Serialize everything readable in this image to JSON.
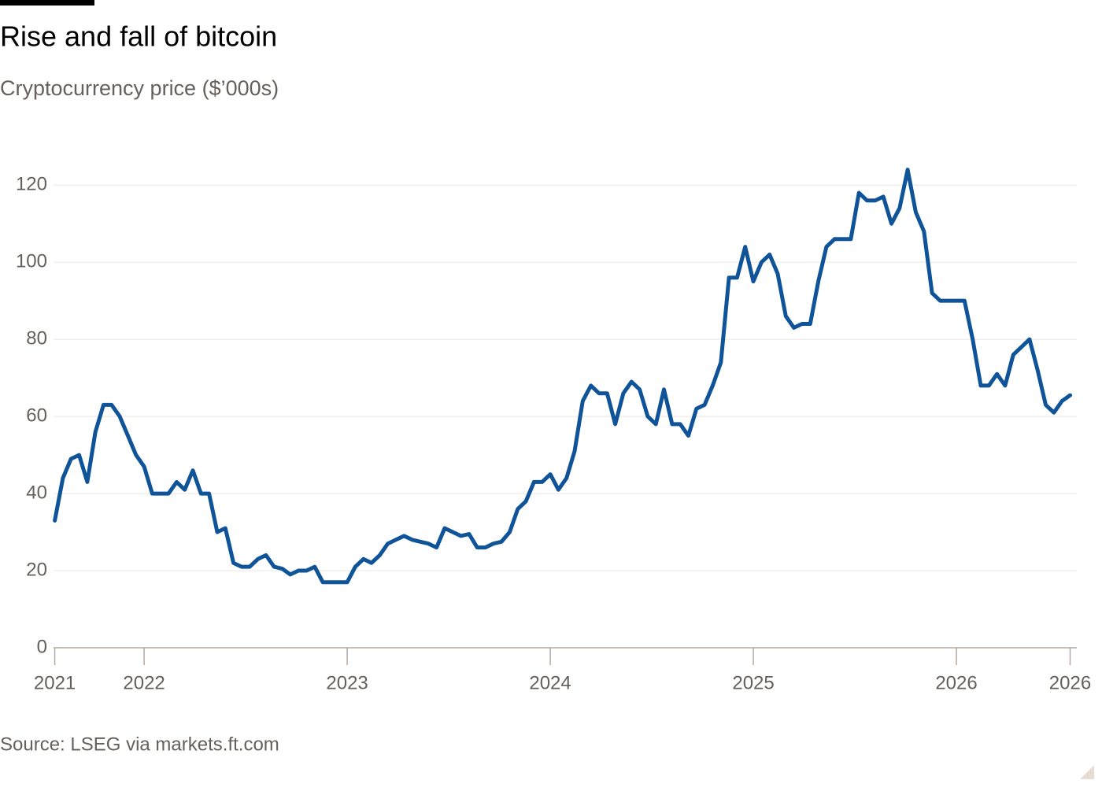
{
  "chart_data": {
    "type": "line",
    "title": "Rise and fall of bitcoin",
    "subtitle": "Cryptocurrency price ($’000s)",
    "source": "Source: LSEG via markets.ft.com",
    "x": [
      2021.56,
      2021.6,
      2021.64,
      2021.68,
      2021.72,
      2021.76,
      2021.8,
      2021.84,
      2021.88,
      2021.92,
      2021.96,
      2022,
      2022.04,
      2022.08,
      2022.12,
      2022.16,
      2022.2,
      2022.24,
      2022.28,
      2022.32,
      2022.36,
      2022.4,
      2022.44,
      2022.48,
      2022.52,
      2022.56,
      2022.6,
      2022.64,
      2022.68,
      2022.72,
      2022.76,
      2022.8,
      2022.84,
      2022.88,
      2022.92,
      2022.96,
      2023,
      2023.04,
      2023.08,
      2023.12,
      2023.16,
      2023.2,
      2023.24,
      2023.28,
      2023.32,
      2023.36,
      2023.4,
      2023.44,
      2023.48,
      2023.52,
      2023.56,
      2023.6,
      2023.64,
      2023.68,
      2023.72,
      2023.76,
      2023.8,
      2023.84,
      2023.88,
      2023.92,
      2023.96,
      2024,
      2024.04,
      2024.08,
      2024.12,
      2024.16,
      2024.2,
      2024.24,
      2024.28,
      2024.32,
      2024.36,
      2024.4,
      2024.44,
      2024.48,
      2024.52,
      2024.56,
      2024.6,
      2024.64,
      2024.68,
      2024.72,
      2024.76,
      2024.8,
      2024.84,
      2024.88,
      2024.92,
      2024.96,
      2025,
      2025.04,
      2025.08,
      2025.12,
      2025.16,
      2025.2,
      2025.24,
      2025.28,
      2025.32,
      2025.36,
      2025.4,
      2025.44,
      2025.48,
      2025.52,
      2025.56,
      2025.6,
      2025.64,
      2025.68,
      2025.72,
      2025.76,
      2025.8,
      2025.84,
      2025.88,
      2025.92,
      2025.96,
      2026,
      2026.04,
      2026.08,
      2026.12,
      2026.16,
      2026.2,
      2026.24,
      2026.28,
      2026.32,
      2026.36,
      2026.4,
      2026.44,
      2026.48,
      2026.52,
      2026.56
    ],
    "series": [
      {
        "name": "Bitcoin",
        "color": "#0f5499",
        "values": [
          33,
          44,
          49,
          50,
          43,
          56,
          63,
          63,
          60,
          55,
          50,
          47,
          40,
          40,
          40,
          43,
          41,
          46,
          40,
          40,
          30,
          31,
          22,
          21,
          21,
          23,
          24,
          21,
          20.5,
          19,
          20,
          20,
          21,
          17,
          17,
          17,
          17,
          21,
          23,
          22,
          24,
          27,
          28,
          29,
          28,
          27.5,
          27,
          26,
          31,
          30,
          29,
          29.5,
          26,
          26,
          27,
          27.5,
          30,
          36,
          38,
          43,
          43,
          45,
          41,
          44,
          51,
          64,
          68,
          66,
          66,
          58,
          66,
          69,
          67,
          60,
          58,
          67,
          58,
          58,
          55,
          62,
          63,
          68,
          74,
          96,
          96,
          104,
          95,
          100,
          102,
          97,
          86,
          83,
          84,
          84,
          95,
          104,
          106,
          106,
          106,
          118,
          116,
          116,
          117,
          110,
          114,
          124,
          113,
          108,
          92,
          90,
          90,
          90,
          90,
          80,
          68,
          68,
          71,
          68,
          76,
          78,
          80,
          72,
          63,
          61,
          64,
          65.5
        ]
      }
    ],
    "xlim": [
      2021.55,
      2026.56
    ],
    "xticks": [
      {
        "value": 2021.56,
        "label": "2021"
      },
      2022,
      2023,
      2024,
      2025,
      2026,
      {
        "value": 2026.56,
        "label": "2026"
      }
    ],
    "ylim": [
      0,
      128
    ],
    "yticks": [
      0,
      20,
      40,
      60,
      80,
      100,
      120
    ],
    "grid": true
  }
}
